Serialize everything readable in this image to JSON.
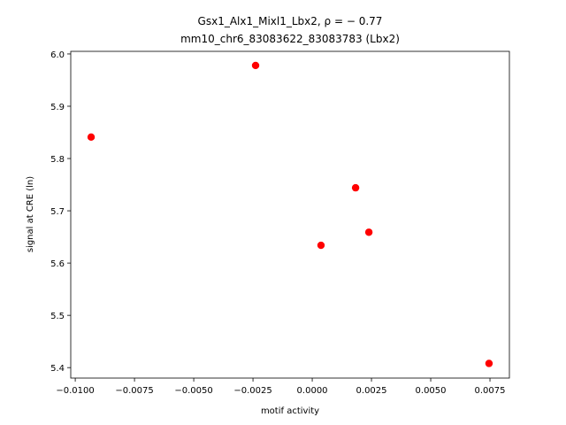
{
  "chart_data": {
    "type": "scatter",
    "title_line1": "Gsx1_Alx1_Mixl1_Lbx2, ρ = − 0.77",
    "title_line2": "mm10_chr6_83083622_83083783 (Lbx2)",
    "xlabel": "motif activity",
    "ylabel": "signal at CRE (ln)",
    "xlim": [
      -0.01019,
      0.00832
    ],
    "ylim": [
      5.38,
      6.005
    ],
    "xticks": [
      -0.01,
      -0.0075,
      -0.005,
      -0.0025,
      0.0,
      0.0025,
      0.005,
      0.0075
    ],
    "xtick_labels": [
      "−0.0100",
      "−0.0075",
      "−0.0050",
      "−0.0025",
      "0.0000",
      "0.0025",
      "0.0050",
      "0.0075"
    ],
    "yticks": [
      5.4,
      5.5,
      5.6,
      5.7,
      5.8,
      5.9,
      6.0
    ],
    "ytick_labels": [
      "5.4",
      "5.5",
      "5.6",
      "5.7",
      "5.8",
      "5.9",
      "6.0"
    ],
    "points": [
      {
        "x": -0.00933,
        "y": 5.841
      },
      {
        "x": -0.00239,
        "y": 5.978
      },
      {
        "x": 0.00183,
        "y": 5.744
      },
      {
        "x": 0.00037,
        "y": 5.634
      },
      {
        "x": 0.00239,
        "y": 5.659
      },
      {
        "x": 0.00746,
        "y": 5.408
      }
    ],
    "point_color": "#ff0000",
    "grid": false
  }
}
